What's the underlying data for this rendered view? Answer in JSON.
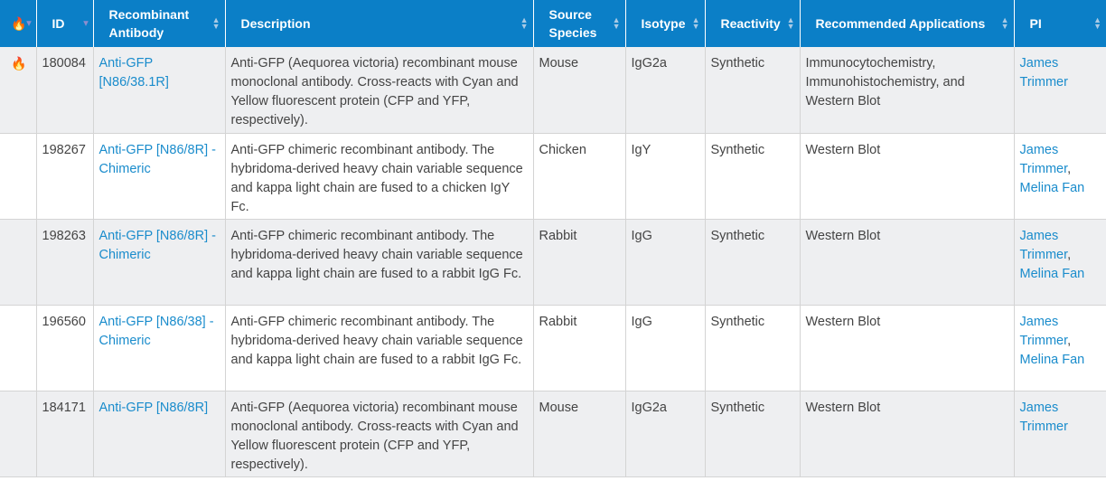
{
  "colors": {
    "header": "#0b7fc7",
    "link": "#1a8ccc",
    "hot": "#f29a1a",
    "row_alt": "#eeeff1"
  },
  "columns": [
    {
      "label": "",
      "icon": "fire-icon"
    },
    {
      "label": "ID"
    },
    {
      "label": "Recombinant Antibody"
    },
    {
      "label": "Description"
    },
    {
      "label": "Source Species"
    },
    {
      "label": "Isotype"
    },
    {
      "label": "Reactivity"
    },
    {
      "label": "Recommended Applications"
    },
    {
      "label": "PI"
    }
  ],
  "rows": [
    {
      "hot": true,
      "id": "180084",
      "antibody": "Anti-GFP [N86/38.1R]",
      "description": "Anti-GFP (Aequorea victoria) recombinant mouse monoclonal antibody. Cross-reacts with Cyan and Yellow fluorescent protein (CFP and YFP, respectively).",
      "species": "Mouse",
      "isotype": "IgG2a",
      "reactivity": "Synthetic",
      "applications": "Immunocytochemistry, Immunohistochemistry, and Western Blot",
      "pi": [
        "James Trimmer"
      ]
    },
    {
      "hot": false,
      "id": "198267",
      "antibody": "Anti-GFP [N86/8R] - Chimeric",
      "description": "Anti-GFP chimeric recombinant antibody. The hybridoma-derived heavy chain variable sequence and kappa light chain are fused to a chicken IgY Fc.",
      "species": "Chicken",
      "isotype": "IgY",
      "reactivity": "Synthetic",
      "applications": "Western Blot",
      "pi": [
        "James Trimmer",
        "Melina Fan"
      ]
    },
    {
      "hot": false,
      "id": "198263",
      "antibody": "Anti-GFP [N86/8R] - Chimeric",
      "description": "Anti-GFP chimeric recombinant antibody. The hybridoma-derived heavy chain variable sequence and kappa light chain are fused to a rabbit IgG Fc.",
      "species": "Rabbit",
      "isotype": "IgG",
      "reactivity": "Synthetic",
      "applications": "Western Blot",
      "pi": [
        "James Trimmer",
        "Melina Fan"
      ]
    },
    {
      "hot": false,
      "id": "196560",
      "antibody": "Anti-GFP [N86/38] - Chimeric",
      "description": "Anti-GFP chimeric recombinant antibody. The hybridoma-derived heavy chain variable sequence and kappa light chain are fused to a rabbit IgG Fc.",
      "species": "Rabbit",
      "isotype": "IgG",
      "reactivity": "Synthetic",
      "applications": "Western Blot",
      "pi": [
        "James Trimmer",
        "Melina Fan"
      ]
    },
    {
      "hot": false,
      "id": "184171",
      "antibody": "Anti-GFP [N86/8R]",
      "description": "Anti-GFP (Aequorea victoria) recombinant mouse monoclonal antibody. Cross-reacts with Cyan and Yellow fluorescent protein (CFP and YFP, respectively).",
      "species": "Mouse",
      "isotype": "IgG2a",
      "reactivity": "Synthetic",
      "applications": "Western Blot",
      "pi": [
        "James Trimmer"
      ]
    }
  ]
}
